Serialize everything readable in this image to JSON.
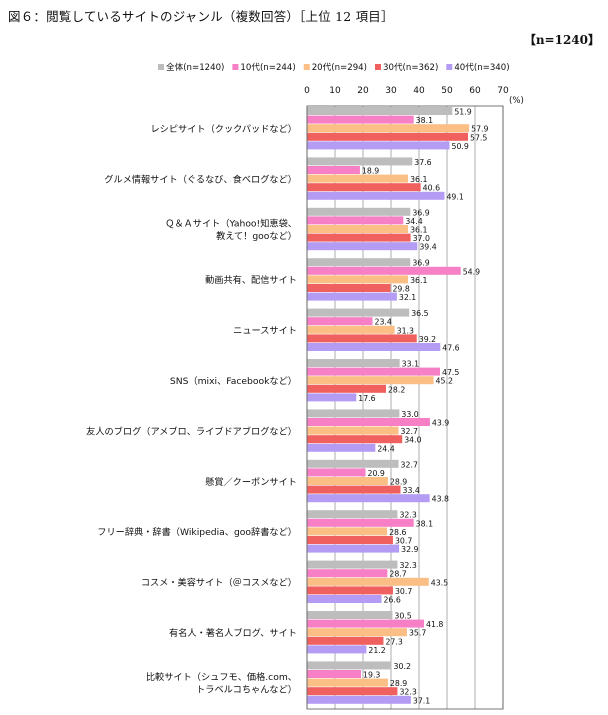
{
  "title": "図６：閲覧しているサイトのジャンル（複数回答）［上位 12 項目］",
  "sample_label": "【n=1240】",
  "chart_data": {
    "type": "bar",
    "orientation": "horizontal",
    "unit": "(%)",
    "xlim": [
      0,
      70
    ],
    "ticks": [
      0,
      10,
      20,
      30,
      40,
      50,
      60,
      70
    ],
    "grid": true,
    "legend_position": "top",
    "categories": [
      [
        "レシピサイト（クックパッドなど）"
      ],
      [
        "グルメ情報サイト（ぐるなび、食べログなど）"
      ],
      [
        "Ｑ＆Ａサイト（Yahoo!知恵袋、",
        "教えて！gooなど）"
      ],
      [
        "動画共有、配信サイト"
      ],
      [
        "ニュースサイト"
      ],
      [
        "SNS（mixi、Facebookなど）"
      ],
      [
        "友人のブログ（アメブロ、ライブドアブログなど）"
      ],
      [
        "懸賞／クーポンサイト"
      ],
      [
        "フリー辞典・辞書（Wikipedia、goo辞書など）"
      ],
      [
        "コスメ・美容サイト（＠コスメなど）"
      ],
      [
        "有名人・著名人ブログ、サイト"
      ],
      [
        "比較サイト（シュフモ、価格.com、",
        "トラベルコちゃんなど）"
      ]
    ],
    "series": [
      {
        "name": "全体(n=1240)",
        "color": "#bdbdbd",
        "values": [
          51.9,
          37.6,
          36.9,
          36.9,
          36.5,
          33.1,
          33.0,
          32.7,
          32.3,
          32.3,
          30.5,
          30.2
        ]
      },
      {
        "name": "10代(n=244)",
        "color": "#f77fc6",
        "values": [
          38.1,
          18.9,
          34.4,
          54.9,
          23.4,
          47.5,
          43.9,
          20.9,
          38.1,
          28.7,
          41.8,
          19.3
        ]
      },
      {
        "name": "20代(n=294)",
        "color": "#fbbe85",
        "values": [
          57.9,
          36.1,
          36.1,
          36.1,
          31.3,
          45.2,
          32.7,
          28.9,
          28.6,
          43.5,
          35.7,
          28.9
        ]
      },
      {
        "name": "30代(n=362)",
        "color": "#f0605f",
        "values": [
          57.5,
          40.6,
          37.0,
          29.8,
          39.2,
          28.2,
          34.0,
          33.4,
          30.7,
          30.7,
          27.3,
          32.3
        ]
      },
      {
        "name": "40代(n=340)",
        "color": "#b49cf5",
        "values": [
          50.9,
          49.1,
          39.4,
          32.1,
          47.6,
          17.6,
          24.4,
          43.8,
          32.9,
          26.6,
          21.2,
          37.1
        ]
      }
    ]
  }
}
